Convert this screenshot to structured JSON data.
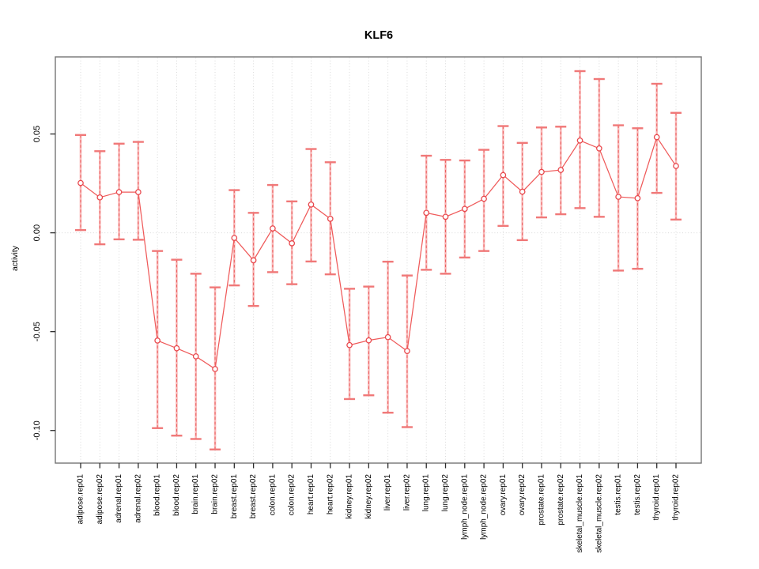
{
  "chart_data": {
    "type": "scatter",
    "subtype": "points-with-error-bars",
    "title": "KLF6",
    "xlabel": "",
    "ylabel": "activity",
    "legend": "none",
    "grid": {
      "vertical": "dotted line at every category",
      "horizontal": "dotted line at y=0 only"
    },
    "marker": "open-circle",
    "categories": [
      "adipose.rep01",
      "adipose.rep02",
      "adrenal.rep01",
      "adrenal.rep02",
      "blood.rep01",
      "blood.rep02",
      "brain.rep01",
      "brain.rep02",
      "breast.rep01",
      "breast.rep02",
      "colon.rep01",
      "colon.rep02",
      "heart.rep01",
      "heart.rep02",
      "kidney.rep01",
      "kidney.rep02",
      "liver.rep01",
      "liver.rep02",
      "lung.rep01",
      "lung.rep02",
      "lymph_node.rep01",
      "lymph_node.rep02",
      "ovary.rep01",
      "ovary.rep02",
      "prostate.rep01",
      "prostate.rep02",
      "skeletal_muscle.rep01",
      "skeletal_muscle.rep02",
      "testis.rep01",
      "testis.rep02",
      "thyroid.rep01",
      "thyroid.rep02"
    ],
    "series": [
      {
        "name": "KLF6 activity",
        "connected": true,
        "values": [
          0.0252,
          0.0179,
          0.0206,
          0.0206,
          -0.0545,
          -0.0584,
          -0.0625,
          -0.0689,
          -0.0026,
          -0.0139,
          0.0022,
          -0.0053,
          0.0143,
          0.0071,
          -0.0568,
          -0.0544,
          -0.0528,
          -0.0598,
          0.0101,
          0.0081,
          0.0121,
          0.0172,
          0.0292,
          0.0208,
          0.0308,
          0.0318,
          0.0467,
          0.0427,
          0.0182,
          0.0175,
          0.0484,
          0.0338
        ],
        "error_upper": [
          0.0495,
          0.0413,
          0.0451,
          0.046,
          -0.0092,
          -0.0136,
          -0.0207,
          -0.0276,
          0.0216,
          0.0101,
          0.0242,
          0.0159,
          0.0424,
          0.0357,
          -0.0283,
          -0.0272,
          -0.0146,
          -0.0216,
          0.039,
          0.0369,
          0.0366,
          0.042,
          0.054,
          0.0455,
          0.0533,
          0.0537,
          0.0818,
          0.0778,
          0.0544,
          0.0529,
          0.0754,
          0.0607
        ],
        "error_lower": [
          0.0014,
          -0.0058,
          -0.0033,
          -0.0035,
          -0.0988,
          -0.1026,
          -0.1043,
          -0.1096,
          -0.0266,
          -0.037,
          -0.0199,
          -0.026,
          -0.0145,
          -0.021,
          -0.0841,
          -0.0822,
          -0.091,
          -0.0983,
          -0.0187,
          -0.0207,
          -0.0125,
          -0.0092,
          0.0035,
          -0.0037,
          0.0078,
          0.0094,
          0.0125,
          0.0081,
          -0.0191,
          -0.0182,
          0.0202,
          0.0067
        ]
      }
    ],
    "yticks": {
      "values": [
        0.05,
        0.0,
        -0.05,
        -0.1
      ],
      "labels": [
        "0.05",
        "0.00",
        "-0.05",
        "-0.10"
      ]
    },
    "ylim": [
      -0.1165,
      0.089
    ],
    "colors": {
      "point": "#e8484d",
      "line": "#ef5a5a",
      "errorbar_band": "#f8a8a8",
      "errorbar_dash": "#ea5050",
      "errorbar_cap": "#f07878",
      "grid": "#d9d9d9",
      "box": "#757575",
      "tick": "#2b2b2b",
      "text": "#000000"
    }
  }
}
